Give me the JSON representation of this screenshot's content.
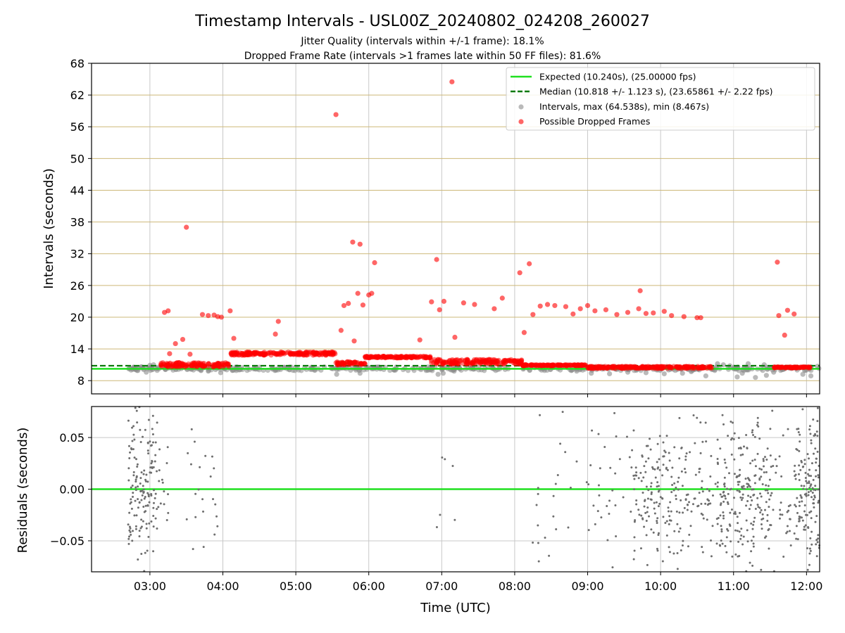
{
  "chart_data": [
    {
      "type": "scatter",
      "title": "Timestamp Intervals - USL00Z_20240802_024208_260027",
      "subtitle_lines": [
        "Jitter Quality (intervals within +/-1 frame): 18.1%",
        "Dropped Frame Rate (intervals >1 frames late within 50 FF files): 81.6%"
      ],
      "ylabel": "Intervals (seconds)",
      "ylim": [
        5.5,
        68
      ],
      "yticks": [
        8,
        14,
        20,
        26,
        32,
        38,
        44,
        50,
        56,
        62,
        68
      ],
      "ytick_labels": [
        "8",
        "14",
        "20",
        "26",
        "32",
        "38",
        "44",
        "50",
        "56",
        "62",
        "68"
      ],
      "xlim_hours": [
        2.2,
        12.18
      ],
      "grid": true,
      "legend_position": "top-right",
      "reference_lines": [
        {
          "label": "Expected (10.240s), (25.00000 fps)",
          "value": 10.24,
          "color": "#1fe01f",
          "style": "solid"
        },
        {
          "label": "Median (10.818 +/- 1.123 s), (23.65861 +/- 2.22 fps)",
          "value": 10.818,
          "color": "#0a7a0a",
          "style": "dashed"
        }
      ],
      "series": [
        {
          "name": "Intervals, max (64.538s), min (8.467s)",
          "color": "#8c8c8c",
          "points": [
            [
              2.72,
              10.3
            ],
            [
              2.8,
              10.1
            ],
            [
              2.88,
              10.6
            ],
            [
              2.95,
              9.6
            ],
            [
              3.0,
              10.9
            ],
            [
              3.05,
              11.0
            ],
            [
              3.7,
              10.0
            ],
            [
              3.8,
              9.8
            ],
            [
              3.9,
              10.1
            ],
            [
              3.97,
              9.5
            ],
            [
              5.56,
              9.2
            ],
            [
              5.88,
              9.4
            ],
            [
              6.95,
              9.2
            ],
            [
              7.02,
              9.4
            ],
            [
              7.17,
              9.8
            ],
            [
              8.85,
              9.8
            ],
            [
              9.05,
              9.4
            ],
            [
              9.3,
              9.3
            ],
            [
              9.55,
              9.6
            ],
            [
              9.8,
              9.5
            ],
            [
              10.05,
              9.3
            ],
            [
              10.3,
              9.4
            ],
            [
              10.42,
              9.7
            ],
            [
              10.62,
              8.9
            ],
            [
              10.72,
              10.1
            ],
            [
              10.78,
              11.2
            ],
            [
              10.86,
              11.0
            ],
            [
              10.95,
              10.8
            ],
            [
              11.05,
              8.7
            ],
            [
              11.12,
              9.4
            ],
            [
              11.2,
              11.2
            ],
            [
              11.3,
              8.6
            ],
            [
              11.42,
              11.0
            ],
            [
              11.45,
              9.0
            ],
            [
              11.55,
              9.6
            ],
            [
              11.66,
              10.1
            ],
            [
              11.85,
              10.4
            ],
            [
              11.95,
              9.2
            ],
            [
              12.06,
              8.9
            ],
            [
              12.15,
              10.7
            ]
          ]
        },
        {
          "name": "Possible Dropped Frames",
          "color": "#ff0000",
          "points": [
            [
              3.2,
              20.9
            ],
            [
              3.25,
              21.2
            ],
            [
              3.27,
              13.1
            ],
            [
              3.35,
              15.0
            ],
            [
              3.45,
              15.8
            ],
            [
              3.5,
              37.0
            ],
            [
              3.55,
              13.0
            ],
            [
              3.72,
              20.5
            ],
            [
              3.8,
              20.3
            ],
            [
              3.88,
              20.4
            ],
            [
              3.93,
              20.1
            ],
            [
              3.98,
              20.0
            ],
            [
              4.1,
              21.2
            ],
            [
              4.15,
              16.0
            ],
            [
              4.72,
              16.8
            ],
            [
              4.76,
              19.2
            ],
            [
              5.55,
              58.3
            ],
            [
              5.62,
              17.5
            ],
            [
              5.66,
              22.2
            ],
            [
              5.72,
              22.6
            ],
            [
              5.78,
              34.2
            ],
            [
              5.8,
              15.5
            ],
            [
              5.85,
              24.5
            ],
            [
              5.88,
              33.8
            ],
            [
              5.92,
              22.3
            ],
            [
              6.0,
              24.2
            ],
            [
              6.04,
              24.5
            ],
            [
              6.08,
              30.3
            ],
            [
              6.7,
              15.7
            ],
            [
              6.86,
              22.9
            ],
            [
              6.93,
              30.9
            ],
            [
              6.97,
              21.4
            ],
            [
              7.03,
              23.0
            ],
            [
              7.14,
              64.5
            ],
            [
              7.18,
              16.2
            ],
            [
              7.3,
              22.7
            ],
            [
              7.45,
              22.4
            ],
            [
              7.72,
              21.6
            ],
            [
              7.83,
              23.6
            ],
            [
              8.07,
              28.4
            ],
            [
              8.13,
              17.1
            ],
            [
              8.2,
              30.1
            ],
            [
              8.25,
              20.5
            ],
            [
              8.35,
              22.1
            ],
            [
              8.45,
              22.4
            ],
            [
              8.55,
              22.2
            ],
            [
              8.7,
              22.0
            ],
            [
              8.8,
              20.6
            ],
            [
              8.9,
              21.6
            ],
            [
              9.0,
              22.2
            ],
            [
              9.1,
              21.2
            ],
            [
              9.25,
              21.4
            ],
            [
              9.4,
              20.5
            ],
            [
              9.55,
              20.9
            ],
            [
              9.7,
              21.6
            ],
            [
              9.72,
              25.0
            ],
            [
              9.8,
              20.7
            ],
            [
              9.9,
              20.8
            ],
            [
              10.05,
              21.1
            ],
            [
              10.15,
              20.3
            ],
            [
              10.32,
              20.1
            ],
            [
              10.5,
              19.9
            ],
            [
              10.55,
              19.9
            ],
            [
              11.6,
              30.4
            ],
            [
              11.62,
              20.3
            ],
            [
              11.7,
              16.6
            ],
            [
              11.74,
              21.3
            ],
            [
              11.83,
              20.6
            ]
          ]
        }
      ],
      "dense_bands": [
        {
          "series": "Possible Dropped Frames",
          "x_start": 3.15,
          "x_end": 4.1,
          "y_start": 10.6,
          "y_end": 11.4
        },
        {
          "series": "Possible Dropped Frames",
          "x_start": 4.1,
          "x_end": 5.55,
          "y_start": 12.8,
          "y_end": 13.4
        },
        {
          "series": "Possible Dropped Frames",
          "x_start": 5.55,
          "x_end": 5.95,
          "y_start": 11.0,
          "y_end": 11.6
        },
        {
          "series": "Possible Dropped Frames",
          "x_start": 5.95,
          "x_end": 6.85,
          "y_start": 12.3,
          "y_end": 12.6
        },
        {
          "series": "Possible Dropped Frames",
          "x_start": 6.85,
          "x_end": 8.1,
          "y_start": 11.1,
          "y_end": 12.0
        },
        {
          "series": "Possible Dropped Frames",
          "x_start": 8.1,
          "x_end": 9.0,
          "y_start": 10.8,
          "y_end": 11.0
        },
        {
          "series": "Possible Dropped Frames",
          "x_start": 9.0,
          "x_end": 10.7,
          "y_start": 10.3,
          "y_end": 10.7
        },
        {
          "series": "Possible Dropped Frames",
          "x_start": 11.55,
          "x_end": 12.05,
          "y_start": 10.4,
          "y_end": 10.6
        },
        {
          "series": "Intervals, max (64.538s), min (8.467s)",
          "x_start": 2.7,
          "x_end": 12.18,
          "y_start": 9.9,
          "y_end": 10.6
        }
      ]
    },
    {
      "type": "scatter",
      "ylabel": "Residuals (seconds)",
      "xlabel": "Time (UTC)",
      "ylim": [
        -0.08,
        0.08
      ],
      "yticks": [
        -0.05,
        0.0,
        0.05
      ],
      "ytick_labels": [
        "−0.05",
        "0.00",
        "0.05"
      ],
      "xlim_hours": [
        2.2,
        12.18
      ],
      "xticks": [
        3,
        4,
        5,
        6,
        7,
        8,
        9,
        10,
        11,
        12
      ],
      "xtick_labels": [
        "03:00",
        "04:00",
        "05:00",
        "06:00",
        "07:00",
        "08:00",
        "09:00",
        "10:00",
        "11:00",
        "12:00"
      ],
      "grid": true,
      "zero_line_color": "#1fe01f",
      "residual_point_color": "#6e6e6e",
      "residual_clusters": [
        {
          "x_start": 2.7,
          "x_end": 3.1,
          "count": 150
        },
        {
          "x_start": 3.1,
          "x_end": 3.25,
          "count": 14
        },
        {
          "x_start": 3.5,
          "x_end": 3.95,
          "count": 22
        },
        {
          "x_start": 6.9,
          "x_end": 7.25,
          "count": 6
        },
        {
          "x_start": 8.15,
          "x_end": 9.0,
          "count": 22
        },
        {
          "x_start": 9.0,
          "x_end": 9.6,
          "count": 30
        },
        {
          "x_start": 9.6,
          "x_end": 10.4,
          "count": 170
        },
        {
          "x_start": 10.4,
          "x_end": 10.75,
          "count": 45
        },
        {
          "x_start": 10.75,
          "x_end": 11.55,
          "count": 230
        },
        {
          "x_start": 11.55,
          "x_end": 11.85,
          "count": 30
        },
        {
          "x_start": 11.85,
          "x_end": 12.18,
          "count": 140
        }
      ]
    }
  ]
}
